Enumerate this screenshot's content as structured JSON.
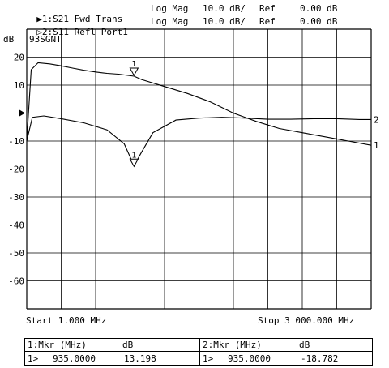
{
  "header": {
    "trace1": {
      "marker": "▶",
      "name": "1:S21 Fwd Trans",
      "format": "Log Mag",
      "scale": "10.0 dB/",
      "ref": "Ref",
      "ref_value": "0.00 dB"
    },
    "trace2": {
      "marker": "▷",
      "name": "2:S11 Refl Port1",
      "format": "Log Mag",
      "scale": "10.0 dB/",
      "ref": "Ref",
      "ref_value": "0.00 dB"
    }
  },
  "axis_unit": "dB",
  "plot_annotation": "93SGNT",
  "start_label": "Start 1.000 MHz",
  "stop_label": "Stop 3 000.000 MHz",
  "trace_numbers": [
    "1",
    "2"
  ],
  "marker_label": "1",
  "marker_table": {
    "left": {
      "header": "1:Mkr (MHz)",
      "unit": "dB",
      "marker": "1>",
      "freq": "935.0000",
      "value": "13.198"
    },
    "right": {
      "header": "2:Mkr (MHz)",
      "unit": "dB",
      "marker": "1>",
      "freq": "935.0000",
      "value": "-18.782"
    }
  },
  "chart_data": {
    "type": "line",
    "xlabel": "",
    "ylabel": "dB",
    "xlim": [
      1,
      3000
    ],
    "ylim": [
      -70,
      30
    ],
    "yticks": [
      20,
      10,
      0,
      -10,
      -20,
      -30,
      -40,
      -50,
      -60
    ],
    "ytick_labels": [
      "20",
      "10",
      "",
      "-10",
      "-20",
      "-30",
      "-40",
      "-50",
      "-60"
    ],
    "grid": true,
    "series": [
      {
        "name": "1",
        "x": [
          1,
          40,
          100,
          200,
          300,
          400,
          500,
          600,
          700,
          800,
          935,
          1000,
          1200,
          1400,
          1600,
          1800,
          2000,
          2200,
          2400,
          2600,
          2800,
          3000
        ],
        "y": [
          -10,
          15.5,
          18.0,
          17.6,
          16.9,
          16.1,
          15.3,
          14.7,
          14.2,
          13.9,
          13.2,
          12.0,
          9.5,
          7.0,
          4.0,
          0,
          -3.0,
          -5.5,
          -7.0,
          -8.5,
          -10.0,
          -11.5
        ]
      },
      {
        "name": "2",
        "x": [
          1,
          50,
          150,
          300,
          500,
          700,
          850,
          935,
          1000,
          1100,
          1300,
          1500,
          1700,
          1900,
          2100,
          2300,
          2500,
          2700,
          2900,
          3000
        ],
        "y": [
          -10,
          -1.5,
          -1.0,
          -2.0,
          -3.5,
          -6.0,
          -11.0,
          -18.8,
          -14.0,
          -7.0,
          -2.5,
          -1.8,
          -1.5,
          -1.8,
          -2.2,
          -2.2,
          -2.0,
          -2.0,
          -2.3,
          -2.3
        ]
      }
    ],
    "markers": [
      {
        "series": "1",
        "x": 935,
        "y": 13.198
      },
      {
        "series": "2",
        "x": 935,
        "y": -18.782
      }
    ]
  }
}
